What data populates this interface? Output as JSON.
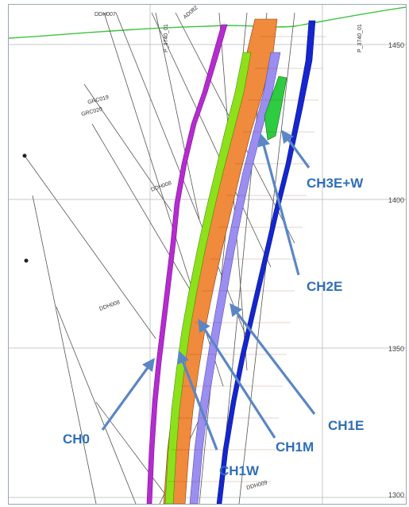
{
  "colors": {
    "label": "#2f6fb7",
    "arrow": "#5b86c5",
    "topography": "#3cc43c",
    "ch0": "#b62bd0",
    "ch1w": "#8de11a",
    "ch1m": "#f08a3c",
    "ch1e": "#9a8ef0",
    "ch2e": "#2ecc40",
    "ch3e": "#1426d0",
    "grid": "#b9b9b9",
    "drillhole": "#555555"
  },
  "elevation_labels": [
    "1450",
    "1400",
    "1350",
    "1300"
  ],
  "zone_labels": [
    {
      "id": "ch3ew",
      "text": "CH3E+W"
    },
    {
      "id": "ch2e",
      "text": "CH2E"
    },
    {
      "id": "ch1e",
      "text": "CH1E"
    },
    {
      "id": "ch1m",
      "text": "CH1M"
    },
    {
      "id": "ch0",
      "text": "CH0"
    },
    {
      "id": "ch1w",
      "text": "CH1W"
    }
  ],
  "drillhole_labels": [
    "DDH007",
    "GRC019",
    "GRC020",
    "DDH008",
    "DDH009",
    "AD082",
    "P_3740_01",
    "P_3740_01",
    "DDH008"
  ]
}
